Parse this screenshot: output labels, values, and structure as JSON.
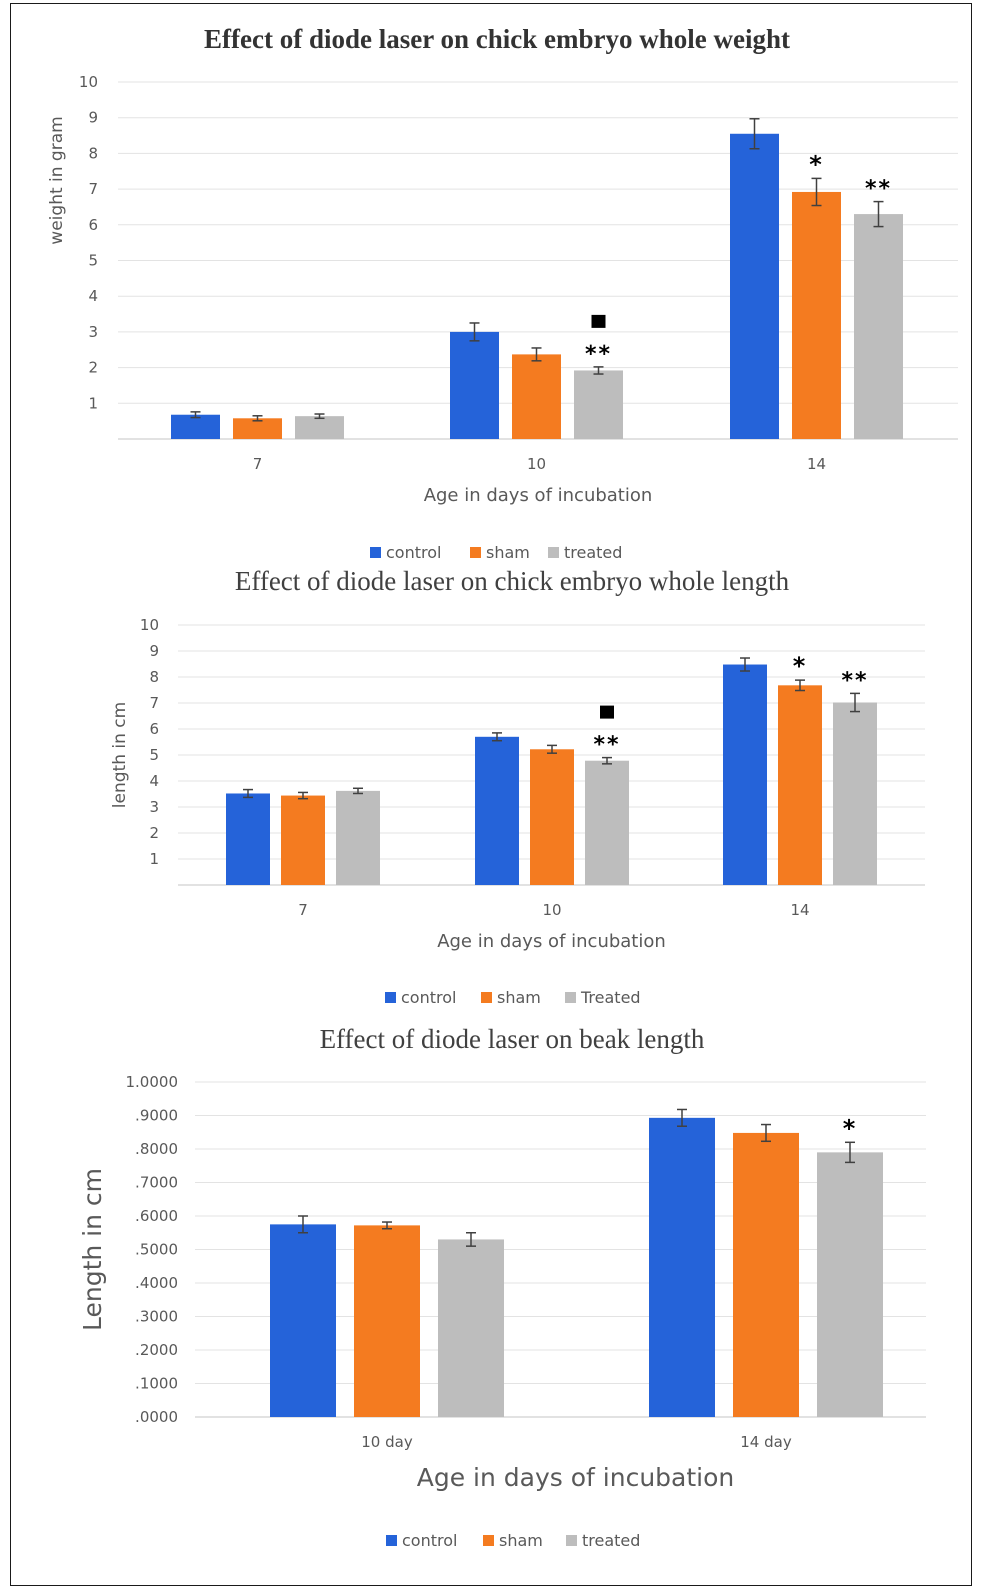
{
  "colors": {
    "control": "#2563d9",
    "sham": "#f47b20",
    "treated": "#bdbdbd",
    "grid": "#e3e3e3",
    "errorbar": "#404040"
  },
  "chart_data": [
    {
      "type": "bar",
      "title": "Effect of diode laser on chick embryo whole weight",
      "xlabel": "Age in days of incubation",
      "ylabel": "weight in gram",
      "categories": [
        "7",
        "10",
        "14"
      ],
      "ylim": [
        0,
        10
      ],
      "yticks": [
        "1",
        "2",
        "3",
        "4",
        "5",
        "6",
        "7",
        "8",
        "9",
        "10"
      ],
      "grid": true,
      "legend_position": "bottom",
      "series": [
        {
          "name": "control",
          "values": [
            0.68,
            3.0,
            8.55
          ],
          "errors": [
            0.08,
            0.25,
            0.42
          ]
        },
        {
          "name": "sham",
          "values": [
            0.58,
            2.37,
            6.92
          ],
          "errors": [
            0.07,
            0.18,
            0.38
          ]
        },
        {
          "name": "treated",
          "values": [
            0.64,
            1.92,
            6.3
          ],
          "errors": [
            0.06,
            0.1,
            0.35
          ]
        }
      ],
      "annotations": [
        {
          "category": "10",
          "series": "treated",
          "text": "**",
          "square": true
        },
        {
          "category": "14",
          "series": "sham",
          "text": "*"
        },
        {
          "category": "14",
          "series": "treated",
          "text": "**"
        }
      ]
    },
    {
      "type": "bar",
      "title": "Effect of diode laser on chick embryo whole length",
      "xlabel": "Age in days of incubation",
      "ylabel": "length in cm",
      "categories": [
        "7",
        "10",
        "14"
      ],
      "ylim": [
        0,
        10
      ],
      "yticks": [
        "1",
        "2",
        "3",
        "4",
        "5",
        "6",
        "7",
        "8",
        "9",
        "10"
      ],
      "grid": true,
      "legend_position": "bottom",
      "series": [
        {
          "name": "control",
          "values": [
            3.52,
            5.7,
            8.48
          ],
          "errors": [
            0.15,
            0.15,
            0.25
          ]
        },
        {
          "name": "sham",
          "values": [
            3.44,
            5.22,
            7.68
          ],
          "errors": [
            0.12,
            0.15,
            0.2
          ]
        },
        {
          "name": "Treated",
          "values": [
            3.62,
            4.78,
            7.02
          ],
          "errors": [
            0.1,
            0.12,
            0.35
          ]
        }
      ],
      "annotations": [
        {
          "category": "10",
          "series": "Treated",
          "text": "**",
          "square": true
        },
        {
          "category": "14",
          "series": "sham",
          "text": "*"
        },
        {
          "category": "14",
          "series": "Treated",
          "text": "**"
        }
      ]
    },
    {
      "type": "bar",
      "title": "Effect of diode laser on beak length",
      "xlabel": "Age in days of incubation",
      "ylabel": "Length in cm",
      "categories": [
        "10 day",
        "14 day"
      ],
      "ylim": [
        0,
        1
      ],
      "yticks": [
        ".0000",
        ".1000",
        ".2000",
        ".3000",
        ".4000",
        ".5000",
        ".6000",
        ".7000",
        ".8000",
        ".9000",
        "1.0000"
      ],
      "grid": true,
      "legend_position": "bottom",
      "series": [
        {
          "name": "control",
          "values": [
            0.575,
            0.893
          ],
          "errors": [
            0.025,
            0.025
          ]
        },
        {
          "name": "sham",
          "values": [
            0.572,
            0.848
          ],
          "errors": [
            0.01,
            0.025
          ]
        },
        {
          "name": "treated",
          "values": [
            0.53,
            0.79
          ],
          "errors": [
            0.02,
            0.03
          ]
        }
      ],
      "annotations": [
        {
          "category": "14 day",
          "series": "treated",
          "text": "*"
        }
      ]
    }
  ]
}
